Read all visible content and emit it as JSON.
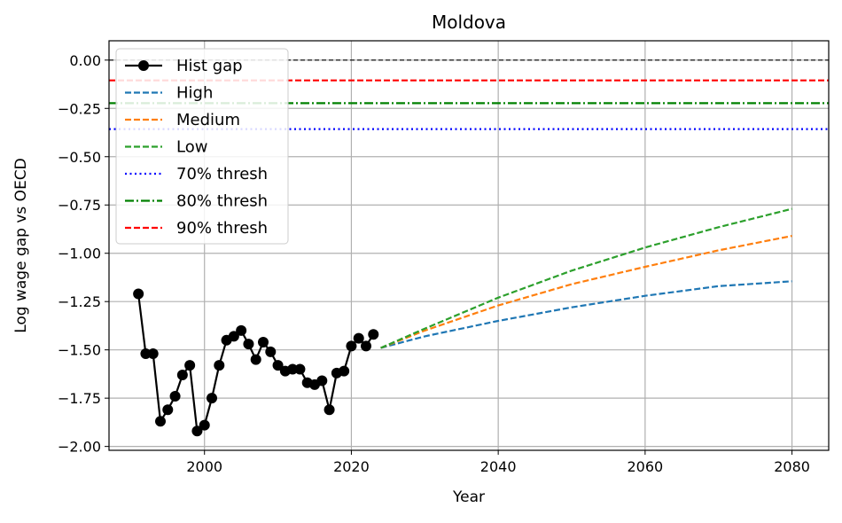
{
  "chart_data": {
    "type": "line",
    "title": "Moldova",
    "xlabel": "Year",
    "ylabel": "Log wage gap vs OECD",
    "xlim": [
      1987,
      2085
    ],
    "ylim": [
      -2.02,
      0.1
    ],
    "grid": true,
    "legend_position": "top-left",
    "xticks": [
      2000,
      2020,
      2040,
      2060,
      2080
    ],
    "yticks": [
      0.0,
      -0.25,
      -0.5,
      -0.75,
      -1.0,
      -1.25,
      -1.5,
      -1.75,
      -2.0
    ],
    "ytick_labels": [
      "0.00",
      "−0.25",
      "−0.50",
      "−0.75",
      "−1.00",
      "−1.25",
      "−1.50",
      "−1.75",
      "−2.00"
    ],
    "series": [
      {
        "name": "Hist gap",
        "color": "#000000",
        "style": "solid-marker",
        "x": [
          1991,
          1992,
          1993,
          1994,
          1995,
          1996,
          1997,
          1998,
          1999,
          2000,
          2001,
          2002,
          2003,
          2004,
          2005,
          2006,
          2007,
          2008,
          2009,
          2010,
          2011,
          2012,
          2013,
          2014,
          2015,
          2016,
          2017,
          2018,
          2019,
          2020,
          2021,
          2022,
          2023
        ],
        "y": [
          -1.21,
          -1.52,
          -1.52,
          -1.87,
          -1.81,
          -1.74,
          -1.63,
          -1.58,
          -1.92,
          -1.89,
          -1.75,
          -1.58,
          -1.45,
          -1.43,
          -1.4,
          -1.47,
          -1.55,
          -1.46,
          -1.51,
          -1.58,
          -1.61,
          -1.6,
          -1.6,
          -1.67,
          -1.68,
          -1.66,
          -1.81,
          -1.62,
          -1.61,
          -1.48,
          -1.44,
          -1.48,
          -1.42
        ]
      },
      {
        "name": "High",
        "color": "#1f77b4",
        "style": "dashed",
        "x": [
          2024,
          2030,
          2040,
          2050,
          2060,
          2070,
          2080
        ],
        "y": [
          -1.49,
          -1.43,
          -1.35,
          -1.28,
          -1.22,
          -1.17,
          -1.145
        ]
      },
      {
        "name": "Medium",
        "color": "#ff7f0e",
        "style": "dashed",
        "x": [
          2024,
          2030,
          2040,
          2050,
          2060,
          2070,
          2080
        ],
        "y": [
          -1.49,
          -1.4,
          -1.27,
          -1.16,
          -1.07,
          -0.985,
          -0.91
        ]
      },
      {
        "name": "Low",
        "color": "#2ca02c",
        "style": "dashed",
        "x": [
          2024,
          2030,
          2040,
          2050,
          2060,
          2070,
          2080
        ],
        "y": [
          -1.49,
          -1.39,
          -1.23,
          -1.09,
          -0.97,
          -0.865,
          -0.77
        ]
      }
    ],
    "hlines": [
      {
        "name": "",
        "y": 0.0,
        "color": "#000000",
        "style": "dashed-thin"
      },
      {
        "name": "70% thresh",
        "y": -0.357,
        "color": "#0000ff",
        "style": "dotted"
      },
      {
        "name": "80% thresh",
        "y": -0.223,
        "color": "#008000",
        "style": "dashdot"
      },
      {
        "name": "90% thresh",
        "y": -0.105,
        "color": "#ff0000",
        "style": "dashed"
      }
    ],
    "legend": [
      "Hist gap",
      "High",
      "Medium",
      "Low",
      "70% thresh",
      "80% thresh",
      "90% thresh"
    ]
  }
}
